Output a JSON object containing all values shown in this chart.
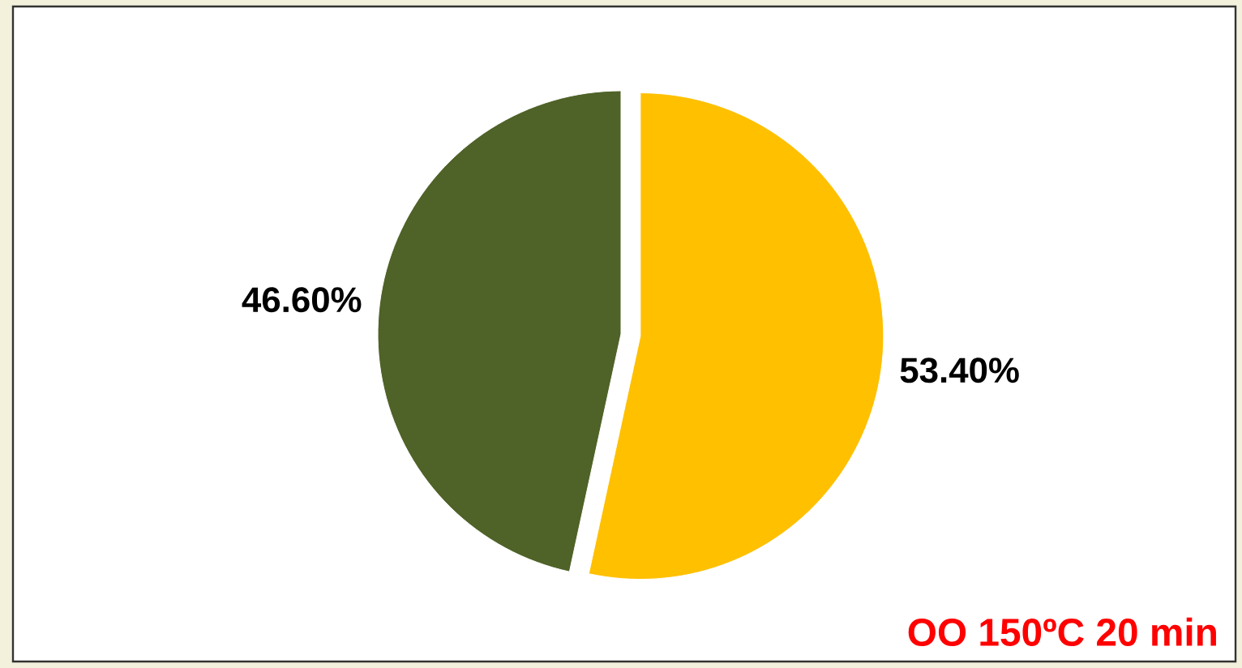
{
  "chart_data": {
    "type": "pie",
    "categories": [
      null,
      null
    ],
    "values": [
      46.6,
      53.4
    ],
    "colors": [
      "#4f6228",
      "#ffc000"
    ],
    "value_labels": [
      "46.60%",
      "53.40%"
    ],
    "annotations": [
      "OO 150ºC 20 min"
    ]
  }
}
